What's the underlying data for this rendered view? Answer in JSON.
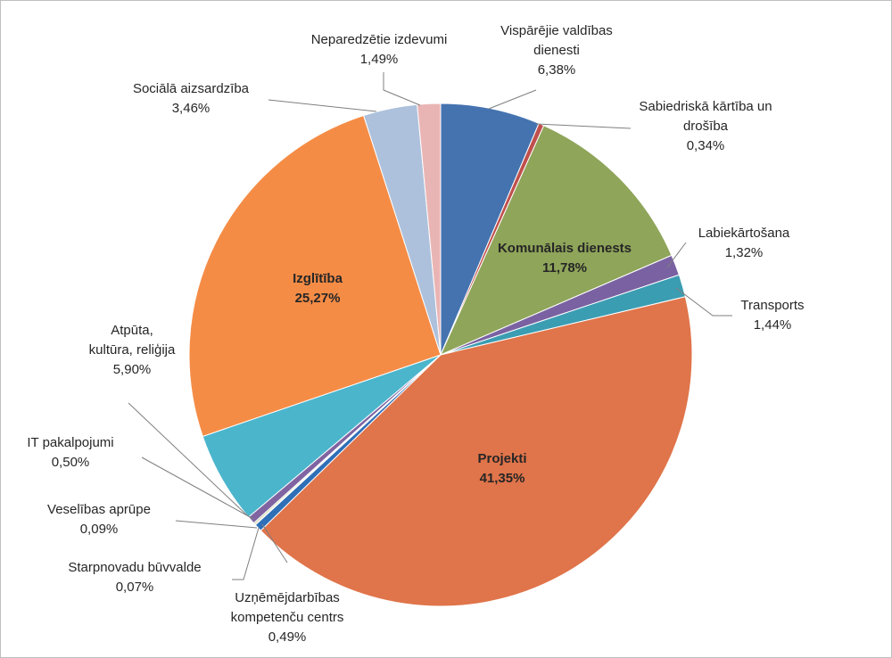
{
  "chart_data": {
    "type": "pie",
    "title": "",
    "legend": "none",
    "slices": [
      {
        "id": "visparejie",
        "name": "Vispārējie valdības dienesti",
        "lines": [
          "Vispārējie valdības",
          "dienesti"
        ],
        "pct_label": "6,38%",
        "value": 6.38,
        "color": "#4573b0"
      },
      {
        "id": "kartiba",
        "name": "Sabiedriskā kārtība un drošība",
        "lines": [
          "Sabiedriskā kārtība un",
          "drošība"
        ],
        "pct_label": "0,34%",
        "value": 0.34,
        "color": "#c0504d"
      },
      {
        "id": "komunalais",
        "name": "Komunālais dienests",
        "lines": [
          "Komunālais dienests"
        ],
        "pct_label": "11,78%",
        "value": 11.78,
        "color": "#8fa55a"
      },
      {
        "id": "labiekartosana",
        "name": "Labiekārtošana",
        "lines": [
          "Labiekārtošana"
        ],
        "pct_label": "1,32%",
        "value": 1.32,
        "color": "#7a62a2"
      },
      {
        "id": "transports",
        "name": "Transports",
        "lines": [
          "Transports"
        ],
        "pct_label": "1,44%",
        "value": 1.44,
        "color": "#3b9db2"
      },
      {
        "id": "projekti",
        "name": "Projekti",
        "lines": [
          "Projekti"
        ],
        "pct_label": "41,35%",
        "value": 41.35,
        "color": "#e0744a"
      },
      {
        "id": "uznemejdarbibas",
        "name": "Uzņēmējdarbības kompetenču centrs",
        "lines": [
          "Uzņēmējdarbības",
          "kompetenču  centrs"
        ],
        "pct_label": "0,49%",
        "value": 0.49,
        "color": "#2e6fb7"
      },
      {
        "id": "starpnovadu",
        "name": "Starpnovadu būvvalde",
        "lines": [
          "Starpnovadu būvvalde"
        ],
        "pct_label": "0,07%",
        "value": 0.07,
        "color": "#c0504d"
      },
      {
        "id": "veseliba",
        "name": "Veselības aprūpe",
        "lines": [
          "Veselības aprūpe"
        ],
        "pct_label": "0,09%",
        "value": 0.09,
        "color": "#9bbb59"
      },
      {
        "id": "it",
        "name": "IT pakalpojumi",
        "lines": [
          "IT pakalpojumi"
        ],
        "pct_label": "0,50%",
        "value": 0.5,
        "color": "#8064a2"
      },
      {
        "id": "atputa",
        "name": "Atpūta, kultūra, reliģija",
        "lines": [
          "Atpūta,",
          "kultūra, reliģija"
        ],
        "pct_label": "5,90%",
        "value": 5.9,
        "color": "#4bb5cc"
      },
      {
        "id": "izglitiba",
        "name": "Izglītība",
        "lines": [
          "Izglītība"
        ],
        "pct_label": "25,27%",
        "value": 25.27,
        "color": "#f58c46"
      },
      {
        "id": "socialā",
        "name": "Sociālā aizsardzība",
        "lines": [
          "Sociālā aizsardzība"
        ],
        "pct_label": "3,46%",
        "value": 3.46,
        "color": "#adc1dc"
      },
      {
        "id": "neparedzetie",
        "name": "Neparedzētie izdevumi",
        "lines": [
          "Neparedzētie izdevumi"
        ],
        "pct_label": "1,49%",
        "value": 1.49,
        "color": "#e9b5b4"
      }
    ]
  }
}
